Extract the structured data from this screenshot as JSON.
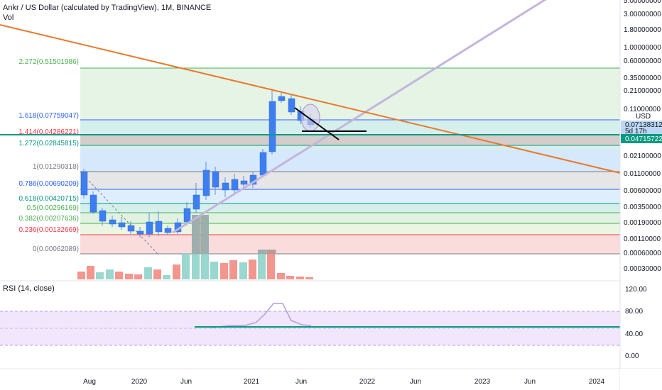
{
  "header": {
    "title": "Ankr / US Dollar (calculated by TradingView), 1M, BINANCE",
    "vol_label": "Vol"
  },
  "rsi_pane": {
    "label": "RSI (14, close)"
  },
  "price_axis": {
    "ticks": [
      "5.00000000",
      "3.00000000",
      "1.80000000",
      "1.00000000",
      "0.60000000",
      "0.35000000",
      "0.21000000",
      "0.11000000",
      "0.02100000",
      "0.01100000",
      "0.00600000",
      "0.00350000",
      "0.00190000",
      "0.00110000",
      "0.00060000",
      "0.00030000"
    ],
    "currency": "USD",
    "current_price": "0.07138312",
    "countdown": "5d 17h",
    "line_price": "0.04715722"
  },
  "rsi_axis": {
    "ticks": [
      "120.00",
      "80.00",
      "40.00",
      "0.00"
    ]
  },
  "time_axis": {
    "labels": [
      "Aug",
      "2020",
      "Jun",
      "2021",
      "Jun",
      "2022",
      "Jun",
      "2023",
      "Jun",
      "2024"
    ]
  },
  "fib_levels": [
    {
      "label": "2.272(0.51501986)",
      "color": "#4caf50"
    },
    {
      "label": "1.618(0.07759047)",
      "color": "#2962ff"
    },
    {
      "label": "1.414(0.04286221)",
      "color": "#f23645"
    },
    {
      "label": "1.272(0.02845815)",
      "color": "#089981"
    },
    {
      "label": "1(0.01290318)",
      "color": "#787b86"
    },
    {
      "label": "0.786(0.00690209)",
      "color": "#2962ff"
    },
    {
      "label": "0.618(0.00420715)",
      "color": "#089981"
    },
    {
      "label": "0.5(0.00296169)",
      "color": "#4caf50"
    },
    {
      "label": "0.382(0.00207636)",
      "color": "#4caf50"
    },
    {
      "label": "0.236(0.00132669)",
      "color": "#f23645"
    },
    {
      "label": "0(0.00062089)",
      "color": "#787b86"
    }
  ],
  "colors": {
    "up": "#2962ff",
    "down": "#2962ff",
    "orange_trend": "#e8792b",
    "purple_trend": "#c4b5dc",
    "teal_line": "#089981",
    "rsi_line": "#b39ddb"
  }
}
